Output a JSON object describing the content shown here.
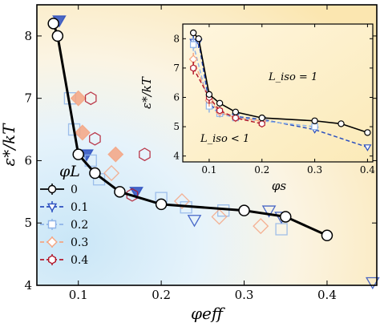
{
  "chart_data": [
    {
      "type": "scatter",
      "xlabel": "φeff",
      "ylabel": "ε*/kT",
      "xlim": [
        0.05,
        0.46
      ],
      "ylim": [
        4.0,
        8.5
      ],
      "xticks": [
        "0.1",
        "0.2",
        "0.3",
        "0.4"
      ],
      "yticks": [
        "4",
        "5",
        "6",
        "7",
        "8"
      ],
      "legend_title": "φL",
      "legend_position": "left-bottom",
      "series": [
        {
          "name": "0",
          "marker": "circle",
          "line": true,
          "color": "#000000",
          "x": [
            0.07,
            0.075,
            0.1,
            0.12,
            0.15,
            0.2,
            0.3,
            0.35,
            0.4
          ],
          "y": [
            8.2,
            8.0,
            6.1,
            5.8,
            5.5,
            5.3,
            5.2,
            5.1,
            4.8
          ]
        },
        {
          "name": "0.1",
          "marker": "triangle-down",
          "color": "#2b4fbf",
          "x": [
            0.077,
            0.11,
            0.17,
            0.24,
            0.33,
            0.345,
            0.455
          ],
          "y": [
            8.25,
            6.1,
            5.5,
            5.05,
            5.2,
            5.1,
            4.05
          ]
        },
        {
          "name": "0.2",
          "marker": "square",
          "color": "#8fb4e8",
          "x": [
            0.09,
            0.095,
            0.115,
            0.125,
            0.2,
            0.23,
            0.275,
            0.345
          ],
          "y": [
            7.0,
            6.5,
            6.0,
            5.7,
            5.4,
            5.25,
            5.2,
            4.9
          ]
        },
        {
          "name": "0.3",
          "marker": "diamond",
          "color": "#f4a582",
          "x": [
            0.1,
            0.105,
            0.145,
            0.14,
            0.225,
            0.27,
            0.32
          ],
          "y": [
            7.0,
            6.45,
            6.1,
            5.8,
            5.35,
            5.1,
            4.95
          ]
        },
        {
          "name": "0.4",
          "marker": "hexagon",
          "color": "#b2182b",
          "x": [
            0.115,
            0.12,
            0.18,
            0.165
          ],
          "y": [
            7.0,
            6.35,
            6.1,
            5.45
          ]
        }
      ]
    },
    {
      "type": "line",
      "xlabel": "φs",
      "ylabel": "ε*/kT",
      "xlim": [
        0.05,
        0.41
      ],
      "ylim": [
        3.8,
        8.5
      ],
      "xticks": [
        "0.1",
        "0.2",
        "0.3",
        "0.4"
      ],
      "yticks": [
        "4",
        "5",
        "6",
        "7",
        "8"
      ],
      "annotations": [
        "L_iso = 1",
        "L_iso < 1"
      ],
      "series": [
        {
          "marker": "circle",
          "style": "solid",
          "color": "#000000",
          "x": [
            0.07,
            0.08,
            0.1,
            0.12,
            0.15,
            0.2,
            0.3,
            0.35,
            0.4
          ],
          "y": [
            8.2,
            8.0,
            6.1,
            5.8,
            5.5,
            5.3,
            5.2,
            5.1,
            4.8
          ]
        },
        {
          "marker": "triangle-down",
          "style": "dashed",
          "color": "#2b4fbf",
          "x": [
            0.07,
            0.08,
            0.1,
            0.12,
            0.15,
            0.2,
            0.3,
            0.4
          ],
          "y": [
            7.9,
            7.9,
            5.8,
            5.45,
            5.35,
            5.25,
            4.9,
            4.3
          ]
        },
        {
          "marker": "square",
          "style": "dashed",
          "color": "#8fb4e8",
          "x": [
            0.07,
            0.1,
            0.12,
            0.15,
            0.2,
            0.3
          ],
          "y": [
            7.8,
            5.7,
            5.45,
            5.3,
            5.2,
            5.0
          ]
        },
        {
          "marker": "diamond",
          "style": "dashed",
          "color": "#f4a582",
          "x": [
            0.07,
            0.1,
            0.12,
            0.15,
            0.2
          ],
          "y": [
            7.3,
            5.9,
            5.5,
            5.3,
            5.2
          ]
        },
        {
          "marker": "hexagon",
          "style": "dashed",
          "color": "#b2182b",
          "x": [
            0.07,
            0.1,
            0.12,
            0.15,
            0.2
          ],
          "y": [
            7.0,
            6.0,
            5.55,
            5.3,
            5.1
          ]
        }
      ]
    }
  ]
}
